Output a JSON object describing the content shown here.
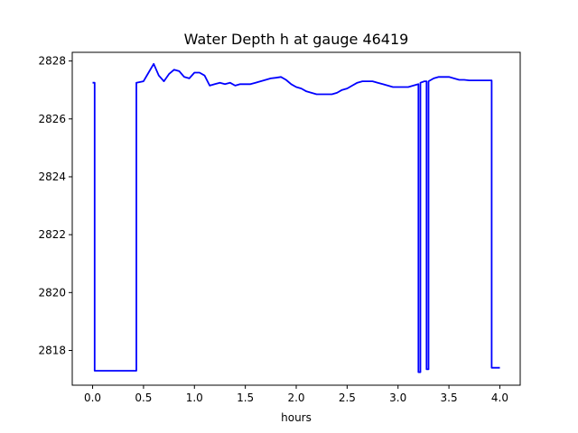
{
  "chart_data": {
    "type": "line",
    "title": "Water Depth h at gauge 46419",
    "xlabel": "hours",
    "ylabel": "",
    "xlim": [
      -0.2,
      4.2
    ],
    "ylim": [
      2816.8,
      2828.3
    ],
    "xticks": [
      0.0,
      0.5,
      1.0,
      1.5,
      2.0,
      2.5,
      3.0,
      3.5,
      4.0
    ],
    "xtick_labels": [
      "0.0",
      "0.5",
      "1.0",
      "1.5",
      "2.0",
      "2.5",
      "3.0",
      "3.5",
      "4.0"
    ],
    "yticks": [
      2818,
      2820,
      2822,
      2824,
      2826,
      2828
    ],
    "ytick_labels": [
      "2818",
      "2820",
      "2822",
      "2824",
      "2826",
      "2828"
    ],
    "grid": false,
    "series": [
      {
        "color": "#0000ff",
        "x": [
          0.0,
          0.02,
          0.02,
          0.43,
          0.43,
          0.5,
          0.55,
          0.6,
          0.65,
          0.7,
          0.75,
          0.8,
          0.85,
          0.9,
          0.95,
          1.0,
          1.05,
          1.1,
          1.15,
          1.2,
          1.25,
          1.3,
          1.35,
          1.4,
          1.45,
          1.5,
          1.55,
          1.6,
          1.65,
          1.7,
          1.75,
          1.8,
          1.85,
          1.9,
          1.95,
          2.0,
          2.05,
          2.1,
          2.15,
          2.2,
          2.25,
          2.3,
          2.35,
          2.4,
          2.45,
          2.5,
          2.55,
          2.6,
          2.65,
          2.7,
          2.75,
          2.8,
          2.85,
          2.9,
          2.95,
          3.0,
          3.05,
          3.1,
          3.15,
          3.2,
          3.2,
          3.22,
          3.22,
          3.26,
          3.28,
          3.28,
          3.3,
          3.3,
          3.35,
          3.4,
          3.45,
          3.5,
          3.55,
          3.6,
          3.65,
          3.7,
          3.75,
          3.8,
          3.85,
          3.9,
          3.92,
          3.92,
          4.0
        ],
        "y": [
          2827.25,
          2827.25,
          2817.3,
          2817.3,
          2827.25,
          2827.3,
          2827.6,
          2827.9,
          2827.5,
          2827.3,
          2827.55,
          2827.7,
          2827.65,
          2827.45,
          2827.4,
          2827.6,
          2827.6,
          2827.5,
          2827.15,
          2827.2,
          2827.25,
          2827.2,
          2827.25,
          2827.15,
          2827.2,
          2827.2,
          2827.2,
          2827.25,
          2827.3,
          2827.35,
          2827.4,
          2827.42,
          2827.45,
          2827.35,
          2827.2,
          2827.1,
          2827.05,
          2826.95,
          2826.9,
          2826.85,
          2826.85,
          2826.85,
          2826.85,
          2826.9,
          2827.0,
          2827.05,
          2827.15,
          2827.25,
          2827.3,
          2827.3,
          2827.3,
          2827.25,
          2827.2,
          2827.15,
          2827.1,
          2827.1,
          2827.1,
          2827.1,
          2827.15,
          2827.2,
          2817.25,
          2817.25,
          2827.25,
          2827.3,
          2827.3,
          2817.35,
          2817.35,
          2827.3,
          2827.4,
          2827.45,
          2827.45,
          2827.45,
          2827.4,
          2827.35,
          2827.35,
          2827.33,
          2827.33,
          2827.33,
          2827.33,
          2827.33,
          2827.33,
          2817.4,
          2817.4
        ]
      }
    ]
  }
}
